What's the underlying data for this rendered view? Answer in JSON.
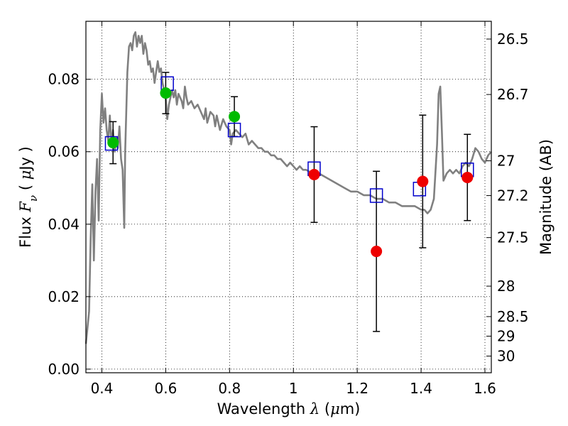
{
  "chart_data": {
    "type": "scatter",
    "title": "",
    "xlabel_parts": [
      "Wavelength  ",
      "λ",
      " (",
      "μ",
      "m)"
    ],
    "ylabel_parts": [
      "Flux  ",
      "F",
      "ν",
      "  ( ",
      "μ",
      "Jy )"
    ],
    "y2label": "Magnitude (AB)",
    "xlim": [
      0.35,
      1.62
    ],
    "ylim": [
      -0.001,
      0.096
    ],
    "xticks": [
      {
        "value": 0.4,
        "label": "0.4"
      },
      {
        "value": 0.6,
        "label": "0.6"
      },
      {
        "value": 0.8,
        "label": "0.8"
      },
      {
        "value": 1.0,
        "label": "1"
      },
      {
        "value": 1.2,
        "label": "1.2"
      },
      {
        "value": 1.4,
        "label": "1.4"
      },
      {
        "value": 1.6,
        "label": "1.6"
      }
    ],
    "yticks": [
      {
        "value": 0.0,
        "label": "0.00"
      },
      {
        "value": 0.02,
        "label": "0.02"
      },
      {
        "value": 0.04,
        "label": "0.04"
      },
      {
        "value": 0.06,
        "label": "0.06"
      },
      {
        "value": 0.08,
        "label": "0.08"
      }
    ],
    "y2ticks": [
      {
        "label": "26.5",
        "flux": 0.0911
      },
      {
        "label": "26.7",
        "flux": 0.0758
      },
      {
        "label": "27",
        "flux": 0.0575
      },
      {
        "label": "27.2",
        "flux": 0.0479
      },
      {
        "label": "27.5",
        "flux": 0.0363
      },
      {
        "label": "28",
        "flux": 0.0229
      },
      {
        "label": "28.5",
        "flux": 0.0145
      },
      {
        "label": "29",
        "flux": 0.0091
      },
      {
        "label": "30",
        "flux": 0.0036
      }
    ],
    "grid": true,
    "model_spectrum": {
      "color": "#808080",
      "points": [
        [
          0.35,
          0.007
        ],
        [
          0.36,
          0.016
        ],
        [
          0.365,
          0.036
        ],
        [
          0.37,
          0.051
        ],
        [
          0.375,
          0.03
        ],
        [
          0.38,
          0.049
        ],
        [
          0.385,
          0.058
        ],
        [
          0.39,
          0.041
        ],
        [
          0.395,
          0.066
        ],
        [
          0.4,
          0.076
        ],
        [
          0.405,
          0.068
        ],
        [
          0.41,
          0.072
        ],
        [
          0.415,
          0.066
        ],
        [
          0.42,
          0.063
        ],
        [
          0.425,
          0.07
        ],
        [
          0.43,
          0.062
        ],
        [
          0.435,
          0.066
        ],
        [
          0.44,
          0.06
        ],
        [
          0.445,
          0.064
        ],
        [
          0.45,
          0.061
        ],
        [
          0.455,
          0.067
        ],
        [
          0.46,
          0.058
        ],
        [
          0.465,
          0.055
        ],
        [
          0.47,
          0.039
        ],
        [
          0.473,
          0.06
        ],
        [
          0.48,
          0.082
        ],
        [
          0.485,
          0.089
        ],
        [
          0.49,
          0.09
        ],
        [
          0.495,
          0.088
        ],
        [
          0.5,
          0.092
        ],
        [
          0.505,
          0.093
        ],
        [
          0.51,
          0.089
        ],
        [
          0.515,
          0.092
        ],
        [
          0.52,
          0.09
        ],
        [
          0.525,
          0.092
        ],
        [
          0.53,
          0.087
        ],
        [
          0.535,
          0.09
        ],
        [
          0.54,
          0.088
        ],
        [
          0.545,
          0.084
        ],
        [
          0.55,
          0.085
        ],
        [
          0.555,
          0.082
        ],
        [
          0.56,
          0.083
        ],
        [
          0.565,
          0.079
        ],
        [
          0.57,
          0.082
        ],
        [
          0.575,
          0.085
        ],
        [
          0.58,
          0.082
        ],
        [
          0.585,
          0.083
        ],
        [
          0.59,
          0.079
        ],
        [
          0.595,
          0.077
        ],
        [
          0.6,
          0.075
        ],
        [
          0.605,
          0.069
        ],
        [
          0.61,
          0.073
        ],
        [
          0.62,
          0.077
        ],
        [
          0.625,
          0.075
        ],
        [
          0.63,
          0.077
        ],
        [
          0.635,
          0.073
        ],
        [
          0.64,
          0.076
        ],
        [
          0.65,
          0.074
        ],
        [
          0.655,
          0.072
        ],
        [
          0.66,
          0.078
        ],
        [
          0.665,
          0.075
        ],
        [
          0.67,
          0.073
        ],
        [
          0.68,
          0.074
        ],
        [
          0.69,
          0.072
        ],
        [
          0.7,
          0.073
        ],
        [
          0.71,
          0.071
        ],
        [
          0.72,
          0.069
        ],
        [
          0.725,
          0.072
        ],
        [
          0.73,
          0.068
        ],
        [
          0.74,
          0.071
        ],
        [
          0.75,
          0.07
        ],
        [
          0.755,
          0.067
        ],
        [
          0.76,
          0.07
        ],
        [
          0.77,
          0.066
        ],
        [
          0.78,
          0.069
        ],
        [
          0.79,
          0.067
        ],
        [
          0.8,
          0.066
        ],
        [
          0.805,
          0.062
        ],
        [
          0.81,
          0.065
        ],
        [
          0.82,
          0.066
        ],
        [
          0.83,
          0.065
        ],
        [
          0.84,
          0.064
        ],
        [
          0.85,
          0.065
        ],
        [
          0.86,
          0.062
        ],
        [
          0.87,
          0.063
        ],
        [
          0.88,
          0.062
        ],
        [
          0.89,
          0.061
        ],
        [
          0.9,
          0.061
        ],
        [
          0.91,
          0.06
        ],
        [
          0.92,
          0.06
        ],
        [
          0.93,
          0.059
        ],
        [
          0.94,
          0.059
        ],
        [
          0.95,
          0.058
        ],
        [
          0.96,
          0.058
        ],
        [
          0.97,
          0.057
        ],
        [
          0.98,
          0.056
        ],
        [
          0.99,
          0.057
        ],
        [
          1.0,
          0.056
        ],
        [
          1.01,
          0.055
        ],
        [
          1.02,
          0.056
        ],
        [
          1.03,
          0.055
        ],
        [
          1.04,
          0.055
        ],
        [
          1.06,
          0.054
        ],
        [
          1.08,
          0.054
        ],
        [
          1.1,
          0.053
        ],
        [
          1.12,
          0.052
        ],
        [
          1.14,
          0.051
        ],
        [
          1.16,
          0.05
        ],
        [
          1.18,
          0.049
        ],
        [
          1.2,
          0.049
        ],
        [
          1.22,
          0.048
        ],
        [
          1.24,
          0.048
        ],
        [
          1.26,
          0.047
        ],
        [
          1.28,
          0.047
        ],
        [
          1.3,
          0.046
        ],
        [
          1.32,
          0.046
        ],
        [
          1.34,
          0.045
        ],
        [
          1.36,
          0.045
        ],
        [
          1.38,
          0.045
        ],
        [
          1.4,
          0.044
        ],
        [
          1.41,
          0.044
        ],
        [
          1.42,
          0.043
        ],
        [
          1.43,
          0.044
        ],
        [
          1.44,
          0.047
        ],
        [
          1.45,
          0.062
        ],
        [
          1.455,
          0.076
        ],
        [
          1.46,
          0.078
        ],
        [
          1.465,
          0.066
        ],
        [
          1.47,
          0.052
        ],
        [
          1.48,
          0.054
        ],
        [
          1.49,
          0.055
        ],
        [
          1.5,
          0.054
        ],
        [
          1.51,
          0.055
        ],
        [
          1.52,
          0.054
        ],
        [
          1.53,
          0.056
        ],
        [
          1.54,
          0.057
        ],
        [
          1.55,
          0.056
        ],
        [
          1.56,
          0.058
        ],
        [
          1.57,
          0.061
        ],
        [
          1.58,
          0.06
        ],
        [
          1.59,
          0.058
        ],
        [
          1.6,
          0.057
        ],
        [
          1.61,
          0.059
        ],
        [
          1.62,
          0.06
        ]
      ]
    },
    "synthetic_photometry": {
      "color": "#0000cc",
      "points": [
        [
          0.43,
          0.0623
        ],
        [
          0.605,
          0.0788
        ],
        [
          0.815,
          0.066
        ],
        [
          1.065,
          0.0553
        ],
        [
          1.26,
          0.0479
        ],
        [
          1.395,
          0.0497
        ],
        [
          1.545,
          0.055
        ]
      ]
    },
    "observed_detections": {
      "color": "#00bb00",
      "points": [
        {
          "x": 0.435,
          "y": 0.0625,
          "err": 0.0058
        },
        {
          "x": 0.6,
          "y": 0.0762,
          "err": 0.0057
        },
        {
          "x": 0.815,
          "y": 0.0697,
          "err": 0.0055
        }
      ]
    },
    "observed_nir": {
      "color": "#ee0000",
      "points": [
        {
          "x": 1.065,
          "y": 0.0537,
          "err": 0.0132
        },
        {
          "x": 1.26,
          "y": 0.0325,
          "err": 0.0221
        },
        {
          "x": 1.405,
          "y": 0.0518,
          "err": 0.0183
        },
        {
          "x": 1.545,
          "y": 0.0529,
          "err": 0.0119
        }
      ]
    }
  }
}
